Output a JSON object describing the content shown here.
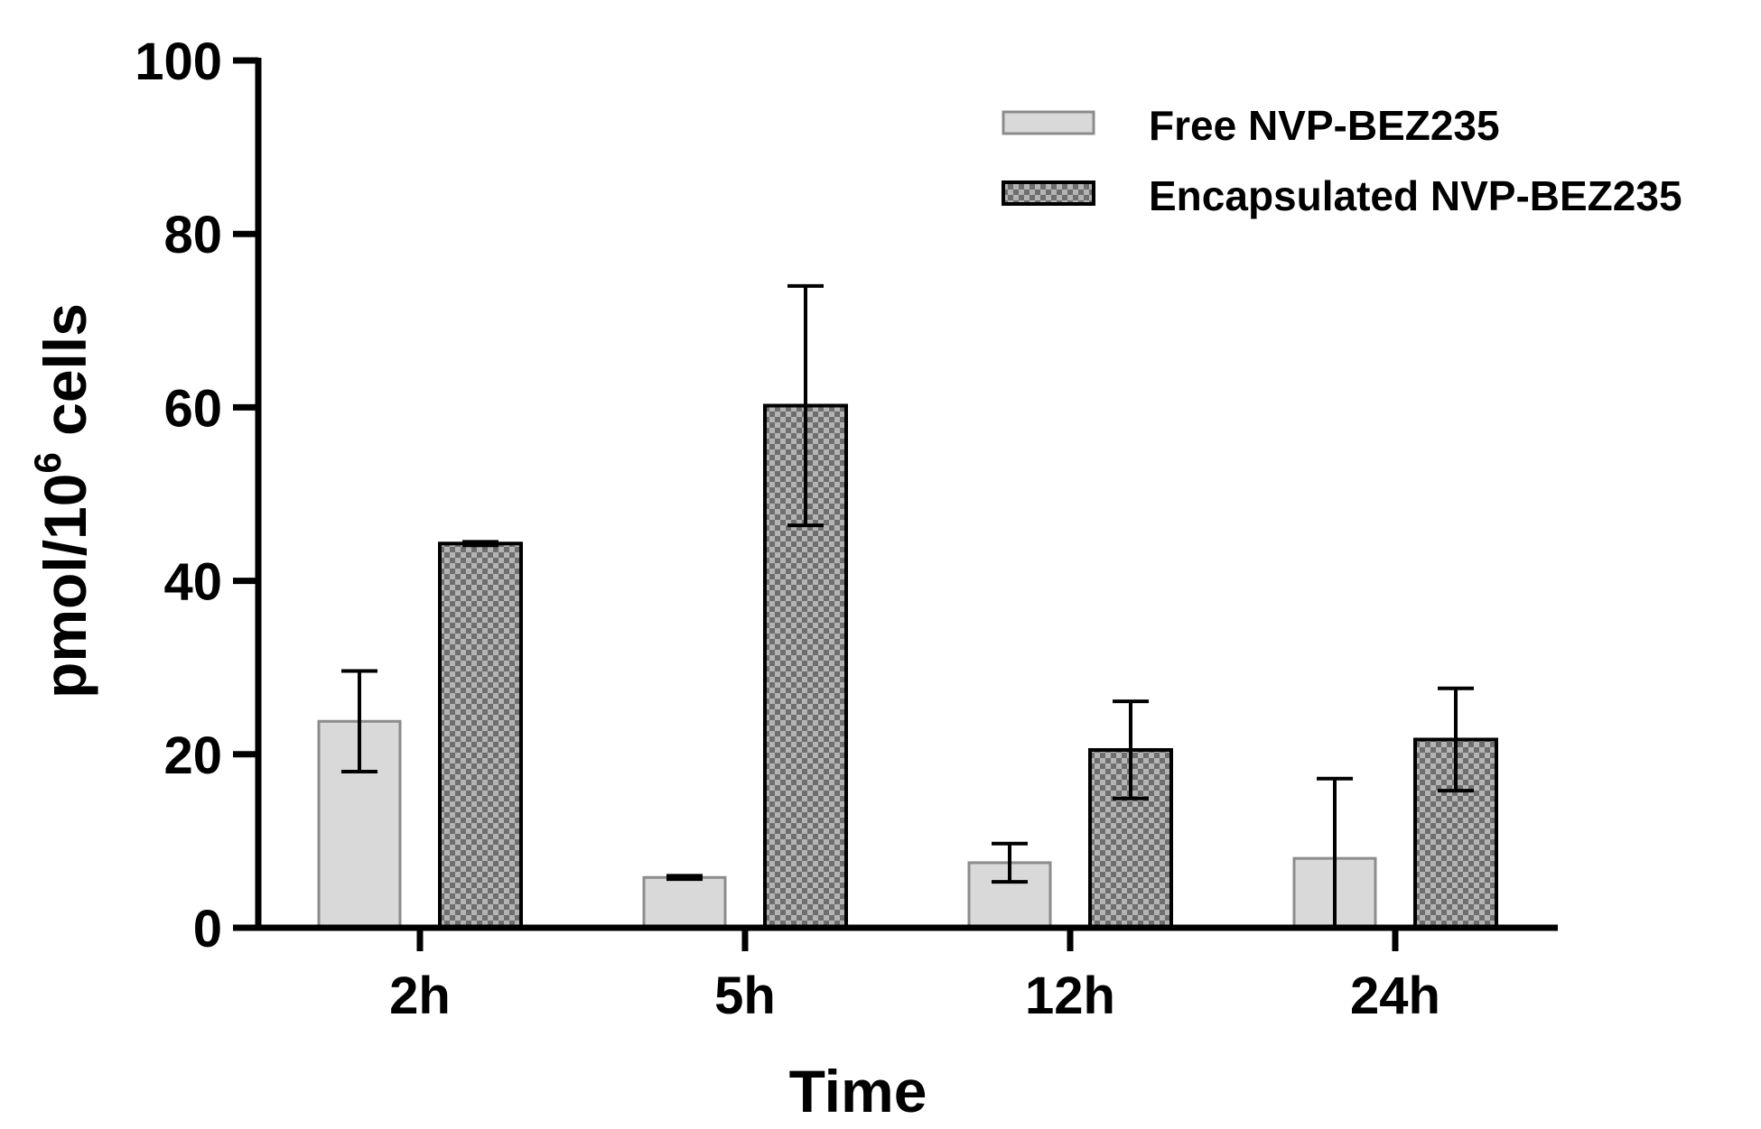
{
  "chart_data": {
    "type": "bar",
    "title": "",
    "xlabel": "Time",
    "ylabel": "pmol/10",
    "ylabel_superscript": "6",
    "ylabel_suffix": " cells",
    "categories": [
      "2h",
      "5h",
      "12h",
      "24h"
    ],
    "ylim": [
      0,
      100
    ],
    "yticks": [
      0,
      20,
      40,
      60,
      80,
      100
    ],
    "grid": false,
    "legend_position": "top-right",
    "series": [
      {
        "name": "Free NVP-BEZ235",
        "values": [
          23.8,
          5.8,
          7.5,
          8.0
        ],
        "errors": [
          5.8,
          0.2,
          2.2,
          9.2
        ],
        "fill": "#d9d9d9",
        "stroke": "#8c8c8c",
        "pattern": "solid"
      },
      {
        "name": "Encapsulated NVP-BEZ235",
        "values": [
          44.3,
          60.2,
          20.5,
          21.7
        ],
        "errors": [
          0.2,
          13.8,
          5.6,
          5.9
        ],
        "fill": "#9a9a9a",
        "stroke": "#000000",
        "pattern": "checker"
      }
    ]
  }
}
